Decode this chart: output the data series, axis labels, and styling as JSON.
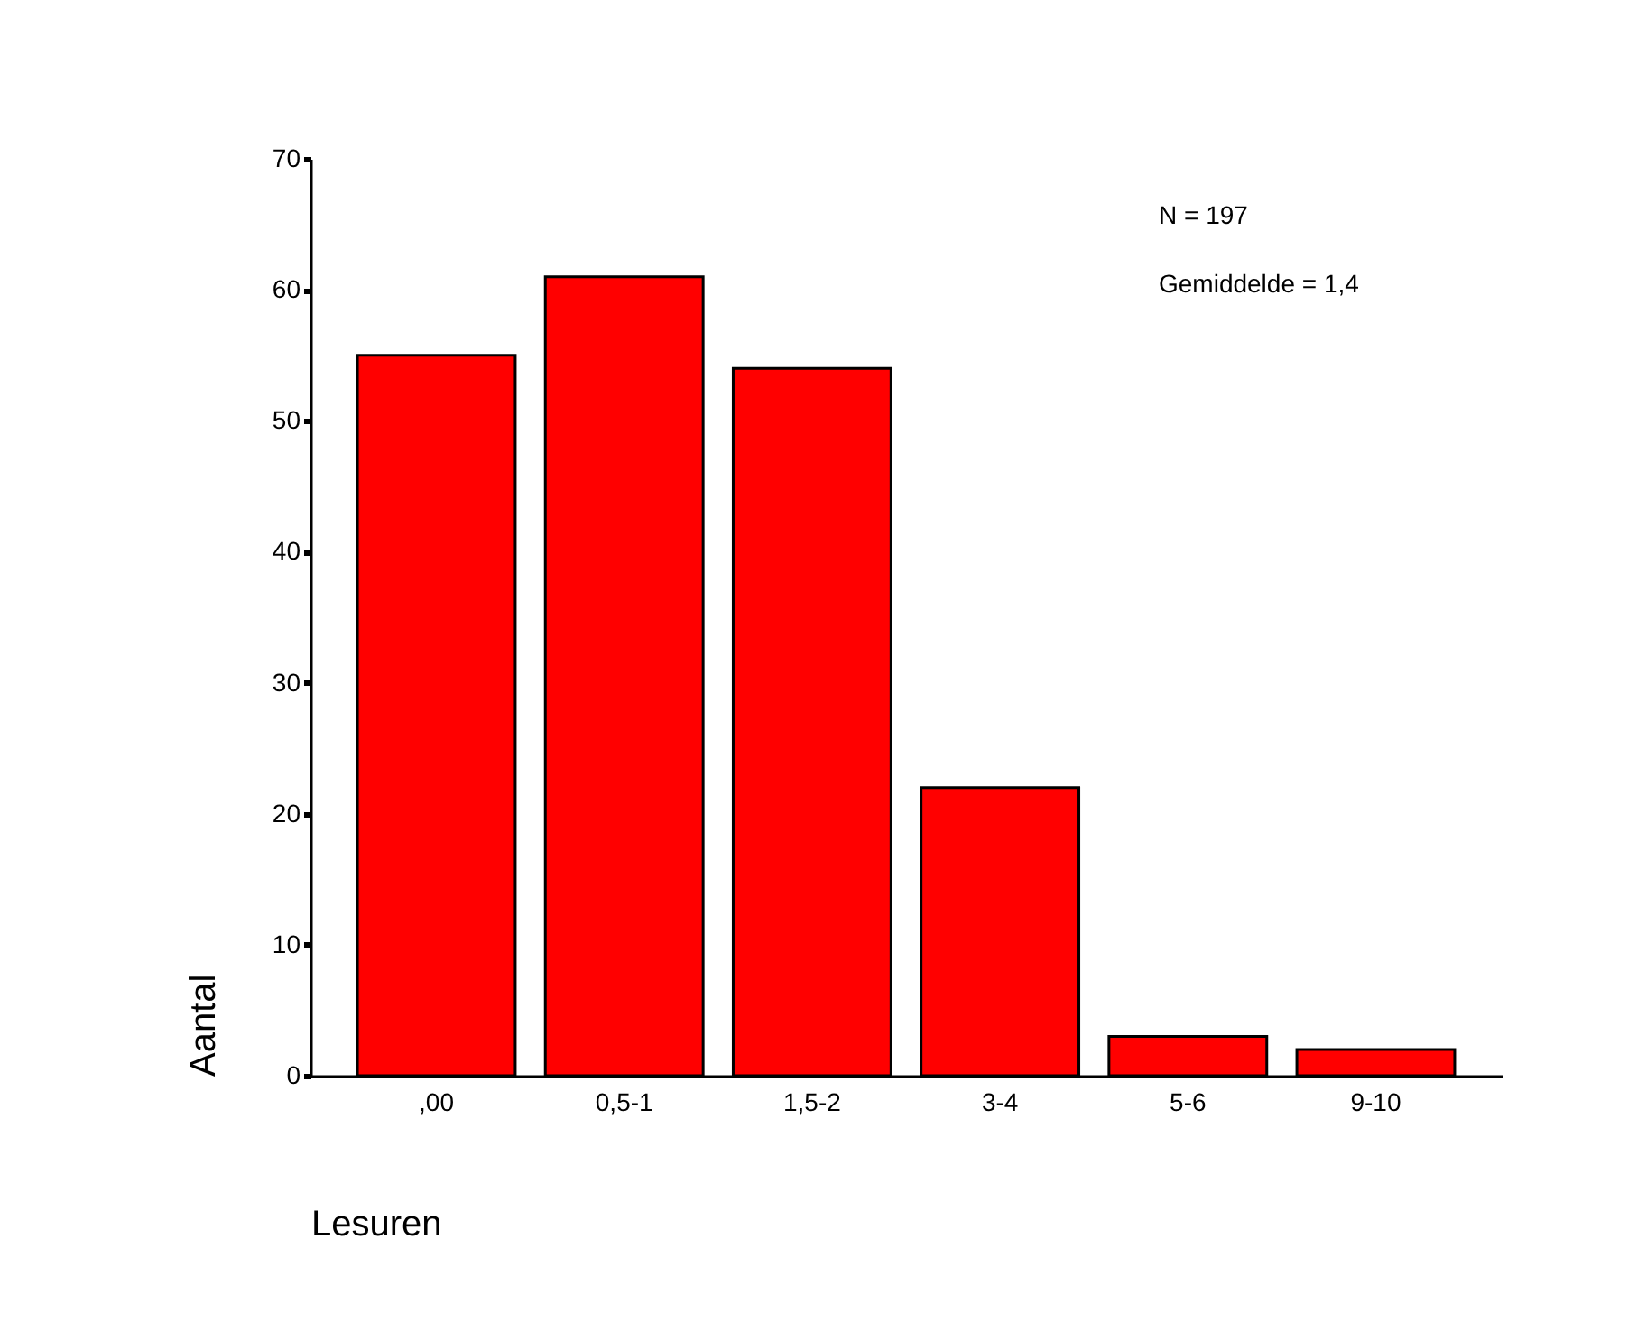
{
  "chart_data": {
    "type": "bar",
    "xlabel": "Lesuren",
    "ylabel": "Aantal",
    "categories": [
      ",00",
      "0,5-1",
      "1,5-2",
      "3-4",
      "5-6",
      "9-10"
    ],
    "values": [
      55,
      61,
      54,
      22,
      3,
      2
    ],
    "color": "#ff0000",
    "ylim": [
      0,
      70
    ],
    "yticks": [
      0,
      10,
      20,
      30,
      40,
      50,
      60,
      70
    ],
    "grid": false,
    "annotations": [
      "N = 197",
      "Gemiddelde = 1,4"
    ]
  }
}
